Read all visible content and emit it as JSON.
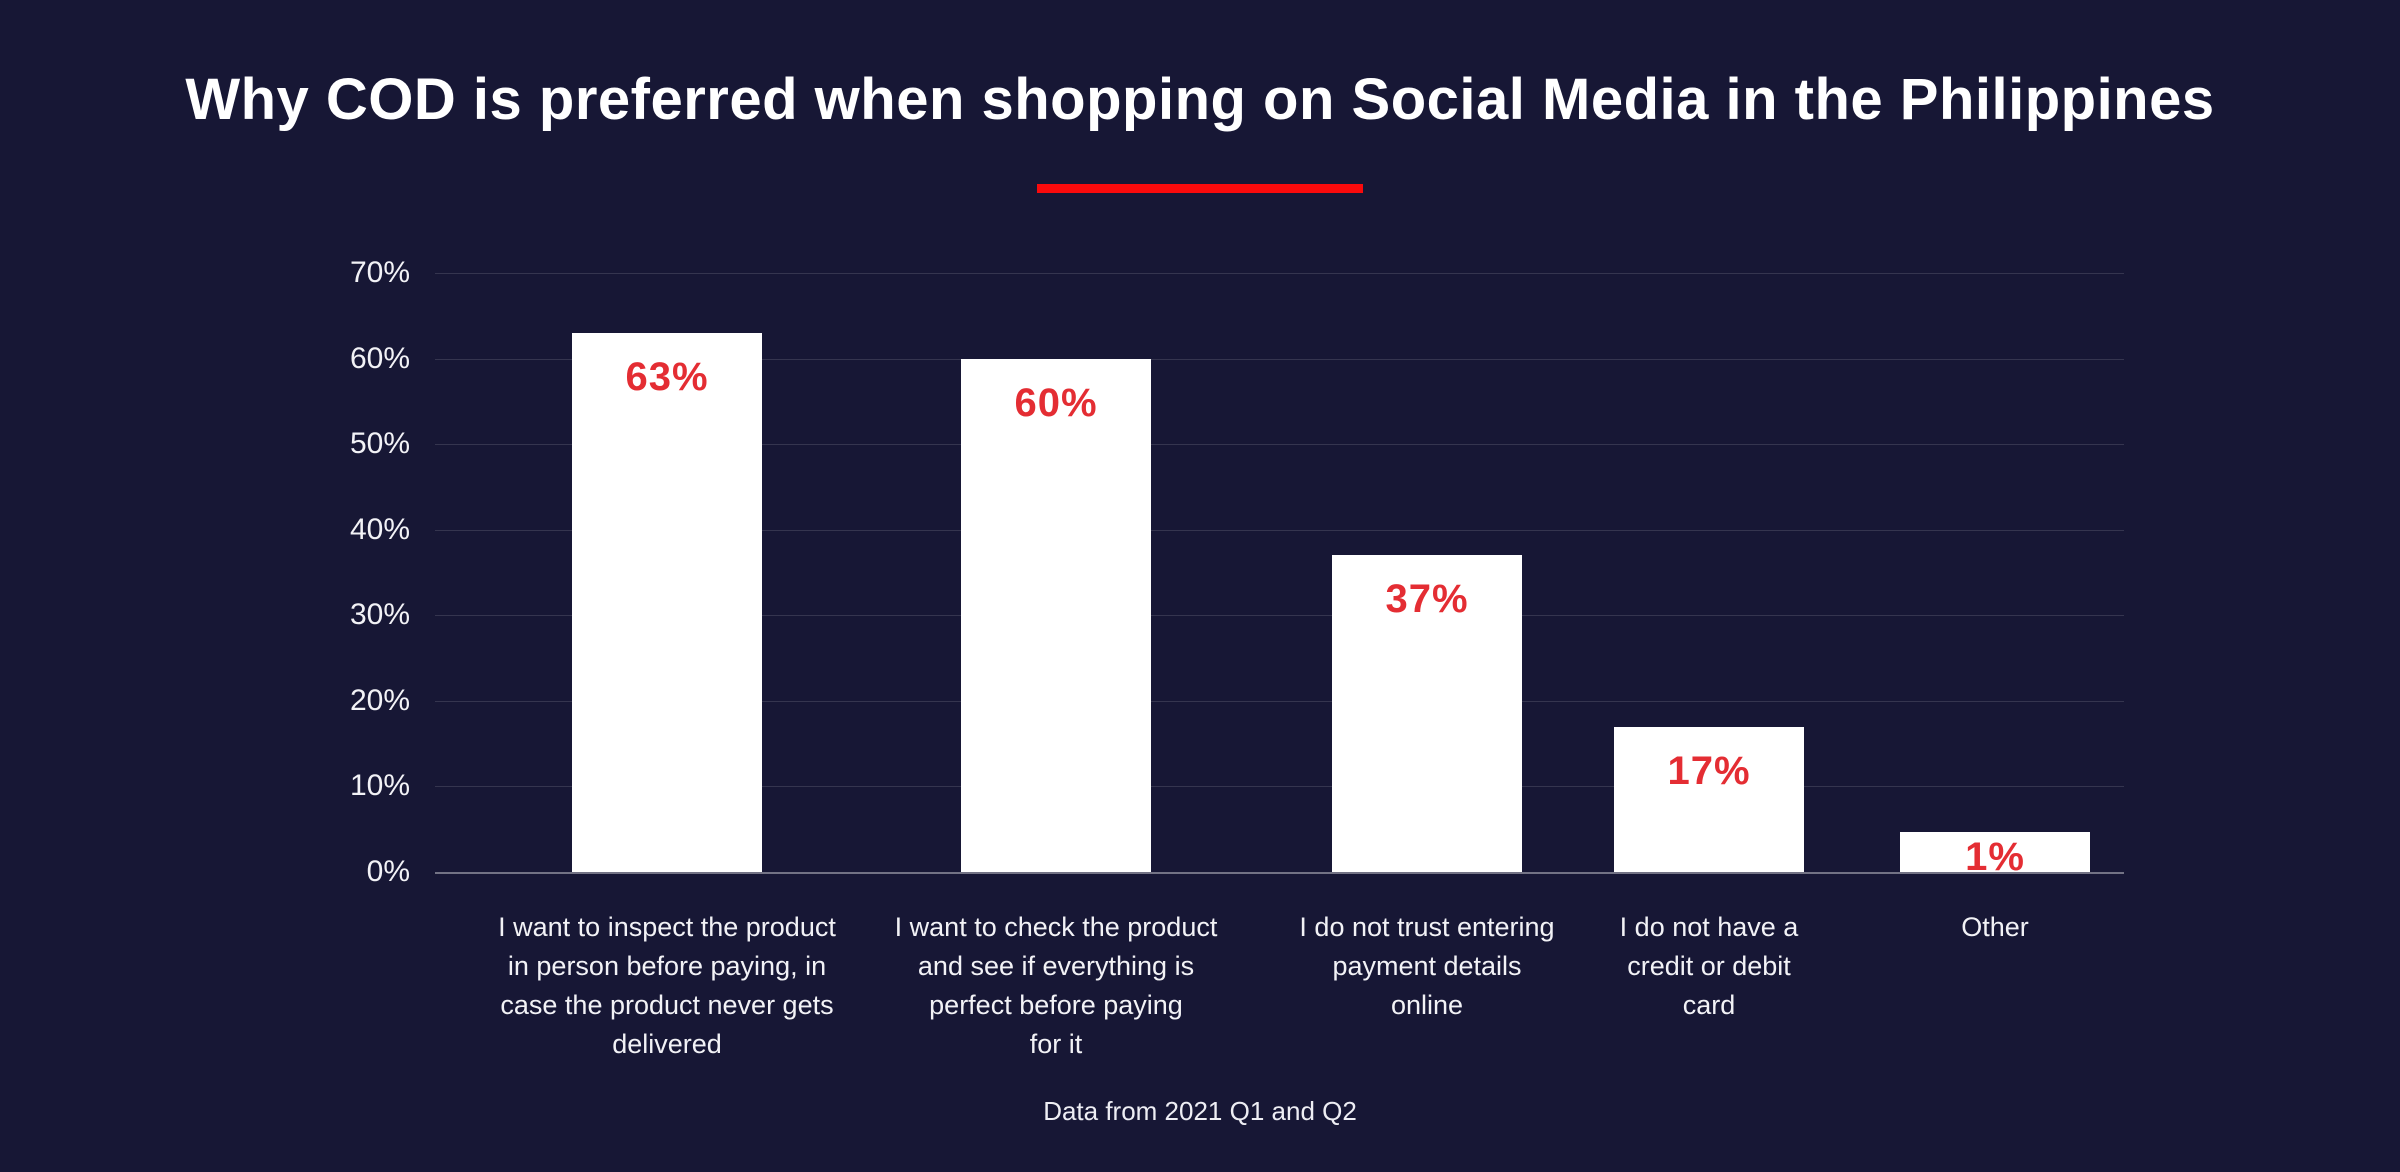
{
  "title": "Why COD is preferred when shopping on Social Media in the Philippines",
  "footer": "Data from 2021 Q1 and Q2",
  "colors": {
    "background": "#171735",
    "bar": "#ffffff",
    "value_label": "#e42d33",
    "title_divider": "#fa0a0c",
    "gridline": "rgba(255,255,255,0.13)",
    "axis_baseline": "rgba(255,255,255,0.40)",
    "text": "#f2f2f6"
  },
  "chart_data": {
    "type": "bar",
    "title": "Why COD is preferred when shopping on Social Media in the Philippines",
    "categories": [
      "I want to inspect the product\nin person before paying, in\ncase the product never gets\ndelivered",
      "I want to check the product\nand see if everything is\nperfect before paying\nfor it",
      "I do not trust entering\npayment details\nonline",
      "I do not have a\ncredit or debit\ncard",
      "Other"
    ],
    "values": [
      63,
      60,
      37,
      17,
      1
    ],
    "value_labels": [
      "63%",
      "60%",
      "37%",
      "17%",
      "1%"
    ],
    "xlabel": "",
    "ylabel": "",
    "ylim": [
      0,
      70
    ],
    "yticks": [
      0,
      10,
      20,
      30,
      40,
      50,
      60,
      70
    ],
    "ytick_labels": [
      "0%",
      "10%",
      "20%",
      "30%",
      "40%",
      "50%",
      "60%",
      "70%"
    ],
    "grid": true,
    "legend": false,
    "bar_color": "#ffffff",
    "value_label_color": "#e42d33",
    "note": "Data from 2021 Q1 and Q2"
  }
}
